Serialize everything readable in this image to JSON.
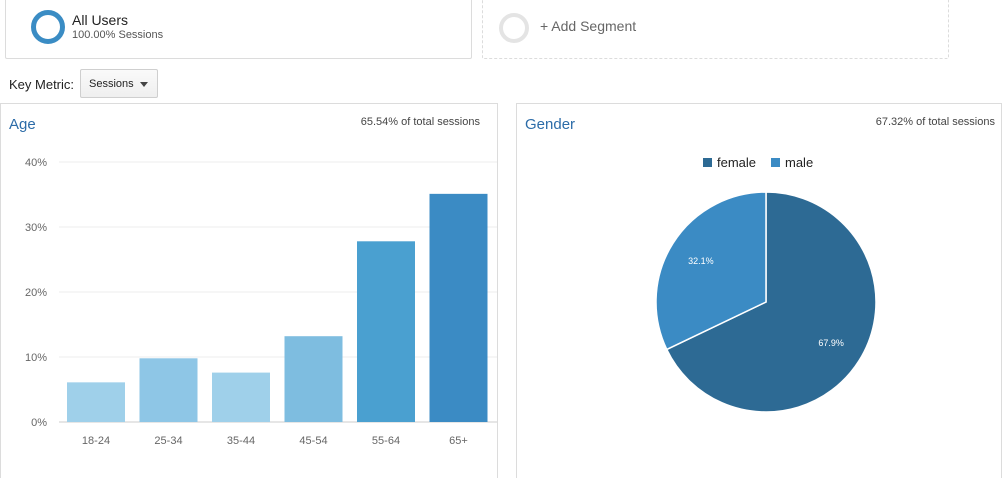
{
  "segments": {
    "all_users": {
      "title": "All Users",
      "subtitle": "100.00% Sessions"
    },
    "add_segment": {
      "label": "+ Add Segment"
    }
  },
  "key_metric": {
    "label": "Key Metric:",
    "value": "Sessions"
  },
  "colors": {
    "accent": "#3a8cc4",
    "title_blue": "#2c6ca8",
    "female": "#2d6a94",
    "male": "#3b8bc4"
  },
  "age_panel": {
    "title": "Age",
    "total": "65.54% of total sessions"
  },
  "gender_panel": {
    "title": "Gender",
    "total": "67.32% of total sessions"
  },
  "chart_data": [
    {
      "type": "bar",
      "title": "Age",
      "categories": [
        "18-24",
        "25-34",
        "35-44",
        "45-54",
        "55-64",
        "65+"
      ],
      "values": [
        6.1,
        9.8,
        7.6,
        13.2,
        27.8,
        35.1
      ],
      "colors": [
        "#9fd0ea",
        "#8ec6e6",
        "#9fd0ea",
        "#7ebde0",
        "#4aa0d0",
        "#3b8bc4"
      ],
      "ylim": [
        0,
        40
      ],
      "yticks": [
        "0%",
        "10%",
        "20%",
        "30%",
        "40%"
      ],
      "grid": true
    },
    {
      "type": "pie",
      "title": "Gender",
      "labels": [
        "female",
        "male"
      ],
      "values": [
        67.9,
        32.1
      ],
      "slice_labels": [
        "67.9%",
        "32.1%"
      ],
      "colors": [
        "#2d6a94",
        "#3b8bc4"
      ],
      "legend": "top"
    }
  ]
}
